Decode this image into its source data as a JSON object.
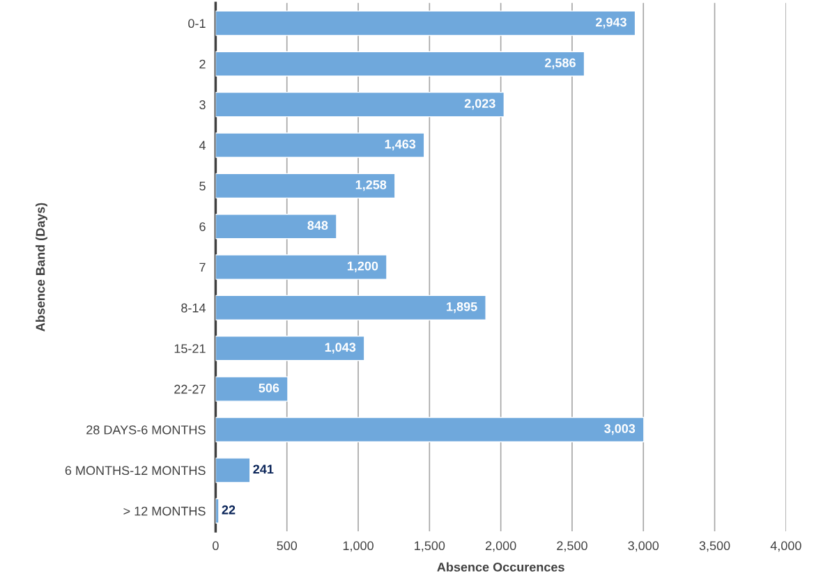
{
  "chart_data": {
    "type": "bar",
    "orientation": "horizontal",
    "xlabel": "Absence Occurences",
    "ylabel": "Absence Band (Days)",
    "categories": [
      "0-1",
      "2",
      "3",
      "4",
      "5",
      "6",
      "7",
      "8-14",
      "15-21",
      "22-27",
      "28 DAYS-6 MONTHS",
      "6 MONTHS-12 MONTHS",
      "> 12 MONTHS"
    ],
    "values": [
      2943,
      2586,
      2023,
      1463,
      1258,
      848,
      1200,
      1895,
      1043,
      506,
      3003,
      241,
      22
    ],
    "value_labels": [
      "2,943",
      "2,586",
      "2,023",
      "1,463",
      "1,258",
      "848",
      "1,200",
      "1,895",
      "1,043",
      "506",
      "3,003",
      "241",
      "22"
    ],
    "color": "#6fa8dc",
    "xlim": [
      0,
      4000
    ],
    "xticks": [
      0,
      500,
      {
        "value": 1000,
        "label": "1,000"
      },
      {
        "value": 1500,
        "label": "1,500"
      },
      {
        "value": 2000,
        "label": "2,000"
      },
      {
        "value": 2500,
        "label": "2,500"
      },
      {
        "value": 3000,
        "label": "3,000"
      },
      {
        "value": 3500,
        "label": "3,500"
      },
      {
        "value": 4000,
        "label": "4,000"
      }
    ],
    "grid": "x",
    "legend": false
  }
}
